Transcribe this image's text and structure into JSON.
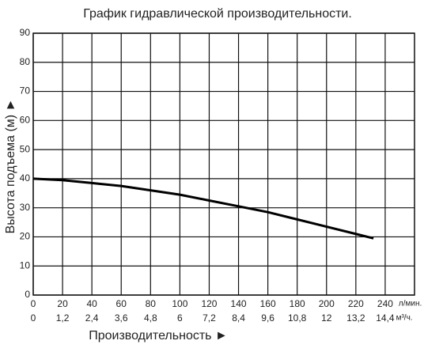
{
  "chart_data": {
    "type": "line",
    "title": "График гидравлической производительности.",
    "x_label": "Производительность ►",
    "y_label": "Высота подъема (м) ►",
    "x_unit": "л/мин.",
    "x2_unit": "м³/ч.",
    "x": [
      0,
      20,
      40,
      60,
      80,
      100,
      120,
      140,
      160,
      180,
      200,
      220,
      232
    ],
    "values": [
      40,
      39.5,
      38.5,
      37.5,
      36,
      34.5,
      32.5,
      30.5,
      28.5,
      26,
      23.5,
      21,
      19.5
    ],
    "color": "#000000",
    "xlim": [
      0,
      260
    ],
    "xticks": [
      0,
      20,
      40,
      60,
      80,
      100,
      120,
      140,
      160,
      180,
      200,
      220,
      240
    ],
    "x2lim": [
      0,
      15.6
    ],
    "x2ticks": [
      0,
      {
        "value": 1.2,
        "label": "1,2"
      },
      {
        "value": 2.4,
        "label": "2,4"
      },
      {
        "value": 3.6,
        "label": "3,6"
      },
      {
        "value": 4.8,
        "label": "4,8"
      },
      6,
      {
        "value": 7.2,
        "label": "7,2"
      },
      {
        "value": 8.4,
        "label": "8,4"
      },
      {
        "value": 9.6,
        "label": "9,6"
      },
      {
        "value": 10.8,
        "label": "10,8"
      },
      12,
      {
        "value": 13.2,
        "label": "13,2"
      },
      {
        "value": 14.4,
        "label": "14,4"
      }
    ],
    "ylim": [
      0,
      90
    ],
    "yticks": [
      0,
      10,
      20,
      30,
      40,
      50,
      60,
      70,
      80,
      90
    ],
    "grid": true
  }
}
